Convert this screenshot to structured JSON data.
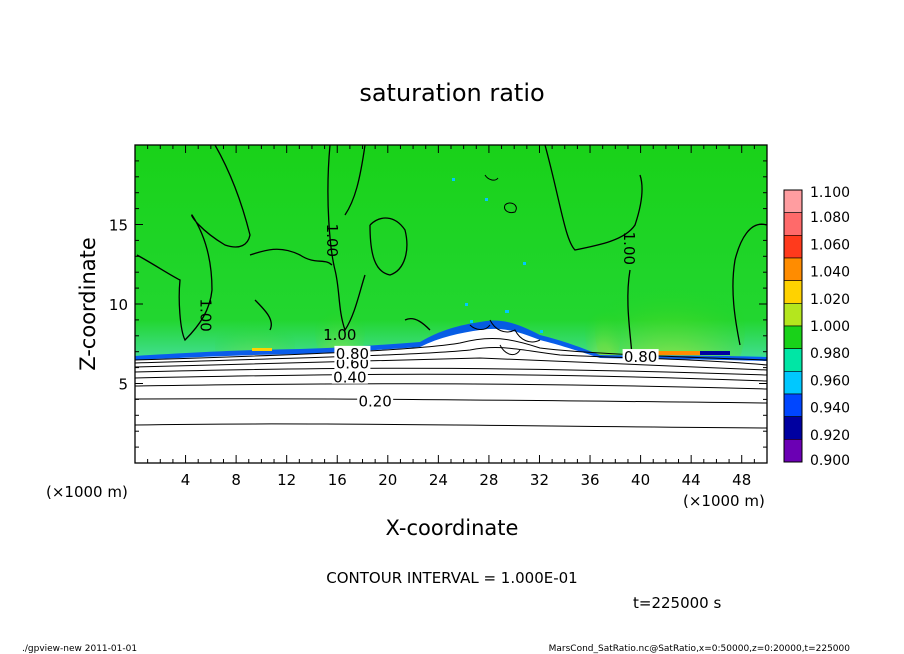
{
  "chart_data": {
    "type": "heatmap",
    "title": "saturation ratio",
    "xlabel": "X-coordinate",
    "ylabel": "Z-coordinate",
    "x_unit": "(×1000 m)",
    "y_unit": "(×1000 m)",
    "xlim": [
      0,
      50
    ],
    "ylim": [
      0,
      20
    ],
    "xticks": [
      "4",
      "8",
      "12",
      "16",
      "20",
      "24",
      "28",
      "32",
      "36",
      "40",
      "44",
      "48"
    ],
    "yticks": [
      "5",
      "10",
      "15"
    ],
    "contour_interval_text": "CONTOUR INTERVAL = 1.000E-01",
    "time_text": "t=225000 s",
    "contour_labels": [
      {
        "text": "0.20",
        "x": 19.0,
        "z": 3.8
      },
      {
        "text": "0.40",
        "x": 17.0,
        "z": 5.3
      },
      {
        "text": "0.60",
        "x": 17.2,
        "z": 6.2
      },
      {
        "text": "0.80",
        "x": 17.2,
        "z": 6.8
      },
      {
        "text": "0.80",
        "x": 40.0,
        "z": 6.6
      },
      {
        "text": "1.00",
        "x": 5.5,
        "z": 9.3
      },
      {
        "text": "1.00",
        "x": 15.5,
        "z": 14.0
      },
      {
        "text": "1.00",
        "x": 16.2,
        "z": 8.0
      },
      {
        "text": "1.00",
        "x": 39.0,
        "z": 13.5
      }
    ],
    "colorbar": {
      "levels": [
        "1.100",
        "1.080",
        "1.060",
        "1.040",
        "1.020",
        "1.000",
        "0.980",
        "0.960",
        "0.940",
        "0.920",
        "0.900"
      ],
      "colors": [
        "#ff9da0",
        "#ff6a6a",
        "#ff3a1c",
        "#ff8c00",
        "#ffd200",
        "#b4e61e",
        "#19d219",
        "#00e6a5",
        "#00c8ff",
        "#0046ff",
        "#0000a0",
        "#6b00b4"
      ]
    }
  },
  "footer": {
    "left": "./gpview-new  2011-01-01",
    "right": "MarsCond_SatRatio.nc@SatRatio,x=0:50000,z=0:20000,t=225000"
  }
}
